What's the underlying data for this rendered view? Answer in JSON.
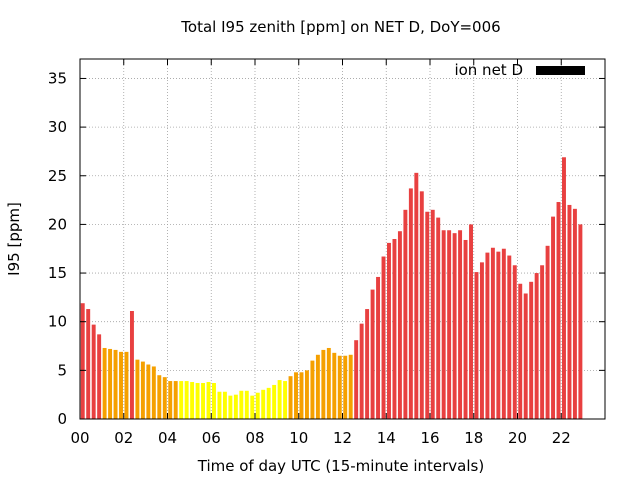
{
  "chart_data": {
    "type": "bar",
    "title": "Total I95 zenith [ppm] on NET D, DoY=006",
    "xlabel": "Time of day UTC (15-minute intervals)",
    "ylabel": "I95 [ppm]",
    "ylim": [
      0,
      37
    ],
    "xlim": [
      0,
      24
    ],
    "yticks": [
      0,
      5,
      10,
      15,
      20,
      25,
      30,
      35
    ],
    "xticks": [
      {
        "value": 0,
        "label": "00"
      },
      {
        "value": 2,
        "label": "02"
      },
      {
        "value": 4,
        "label": "04"
      },
      {
        "value": 6,
        "label": "06"
      },
      {
        "value": 8,
        "label": "08"
      },
      {
        "value": 10,
        "label": "10"
      },
      {
        "value": 12,
        "label": "12"
      },
      {
        "value": 14,
        "label": "14"
      },
      {
        "value": 16,
        "label": "16"
      },
      {
        "value": 18,
        "label": "18"
      },
      {
        "value": 20,
        "label": "20"
      },
      {
        "value": 22,
        "label": "22"
      }
    ],
    "grid": true,
    "legend": {
      "label": "ion net D",
      "placement": "top-right",
      "color": "#000000"
    },
    "bin_hours": 0.25,
    "colors": {
      "red": "#e84040",
      "orange": "#f5a000",
      "yellow": "#ffff00"
    },
    "bars": [
      {
        "t": 0.0,
        "v": 11.9,
        "c": "red"
      },
      {
        "t": 0.25,
        "v": 11.3,
        "c": "red"
      },
      {
        "t": 0.5,
        "v": 9.7,
        "c": "red"
      },
      {
        "t": 0.75,
        "v": 8.7,
        "c": "red"
      },
      {
        "t": 1.0,
        "v": 7.3,
        "c": "orange"
      },
      {
        "t": 1.25,
        "v": 7.2,
        "c": "orange"
      },
      {
        "t": 1.5,
        "v": 7.1,
        "c": "orange"
      },
      {
        "t": 1.75,
        "v": 6.9,
        "c": "orange"
      },
      {
        "t": 2.0,
        "v": 6.9,
        "c": "orange"
      },
      {
        "t": 2.25,
        "v": 11.1,
        "c": "red"
      },
      {
        "t": 2.5,
        "v": 6.1,
        "c": "orange"
      },
      {
        "t": 2.75,
        "v": 5.9,
        "c": "orange"
      },
      {
        "t": 3.0,
        "v": 5.6,
        "c": "orange"
      },
      {
        "t": 3.25,
        "v": 5.4,
        "c": "orange"
      },
      {
        "t": 3.5,
        "v": 4.5,
        "c": "orange"
      },
      {
        "t": 3.75,
        "v": 4.3,
        "c": "orange"
      },
      {
        "t": 4.0,
        "v": 3.9,
        "c": "orange"
      },
      {
        "t": 4.25,
        "v": 3.9,
        "c": "orange"
      },
      {
        "t": 4.5,
        "v": 3.9,
        "c": "yellow"
      },
      {
        "t": 4.75,
        "v": 3.9,
        "c": "yellow"
      },
      {
        "t": 5.0,
        "v": 3.8,
        "c": "yellow"
      },
      {
        "t": 5.25,
        "v": 3.7,
        "c": "yellow"
      },
      {
        "t": 5.5,
        "v": 3.7,
        "c": "yellow"
      },
      {
        "t": 5.75,
        "v": 3.8,
        "c": "yellow"
      },
      {
        "t": 6.0,
        "v": 3.7,
        "c": "yellow"
      },
      {
        "t": 6.25,
        "v": 2.8,
        "c": "yellow"
      },
      {
        "t": 6.5,
        "v": 2.8,
        "c": "yellow"
      },
      {
        "t": 6.75,
        "v": 2.4,
        "c": "yellow"
      },
      {
        "t": 7.0,
        "v": 2.5,
        "c": "yellow"
      },
      {
        "t": 7.25,
        "v": 2.9,
        "c": "yellow"
      },
      {
        "t": 7.5,
        "v": 2.9,
        "c": "yellow"
      },
      {
        "t": 7.75,
        "v": 2.4,
        "c": "yellow"
      },
      {
        "t": 8.0,
        "v": 2.7,
        "c": "yellow"
      },
      {
        "t": 8.25,
        "v": 3.0,
        "c": "yellow"
      },
      {
        "t": 8.5,
        "v": 3.2,
        "c": "yellow"
      },
      {
        "t": 8.75,
        "v": 3.5,
        "c": "yellow"
      },
      {
        "t": 9.0,
        "v": 4.0,
        "c": "yellow"
      },
      {
        "t": 9.25,
        "v": 3.9,
        "c": "yellow"
      },
      {
        "t": 9.5,
        "v": 4.4,
        "c": "orange"
      },
      {
        "t": 9.75,
        "v": 4.8,
        "c": "orange"
      },
      {
        "t": 10.0,
        "v": 4.8,
        "c": "orange"
      },
      {
        "t": 10.25,
        "v": 5.0,
        "c": "orange"
      },
      {
        "t": 10.5,
        "v": 6.0,
        "c": "orange"
      },
      {
        "t": 10.75,
        "v": 6.6,
        "c": "orange"
      },
      {
        "t": 11.0,
        "v": 7.1,
        "c": "orange"
      },
      {
        "t": 11.25,
        "v": 7.3,
        "c": "orange"
      },
      {
        "t": 11.5,
        "v": 6.8,
        "c": "orange"
      },
      {
        "t": 11.75,
        "v": 6.5,
        "c": "orange"
      },
      {
        "t": 12.0,
        "v": 6.5,
        "c": "orange"
      },
      {
        "t": 12.25,
        "v": 6.6,
        "c": "orange"
      },
      {
        "t": 12.5,
        "v": 8.1,
        "c": "red"
      },
      {
        "t": 12.75,
        "v": 9.8,
        "c": "red"
      },
      {
        "t": 13.0,
        "v": 11.3,
        "c": "red"
      },
      {
        "t": 13.25,
        "v": 13.3,
        "c": "red"
      },
      {
        "t": 13.5,
        "v": 14.6,
        "c": "red"
      },
      {
        "t": 13.75,
        "v": 16.7,
        "c": "red"
      },
      {
        "t": 14.0,
        "v": 18.1,
        "c": "red"
      },
      {
        "t": 14.25,
        "v": 18.5,
        "c": "red"
      },
      {
        "t": 14.5,
        "v": 19.3,
        "c": "red"
      },
      {
        "t": 14.75,
        "v": 21.5,
        "c": "red"
      },
      {
        "t": 15.0,
        "v": 23.7,
        "c": "red"
      },
      {
        "t": 15.25,
        "v": 25.3,
        "c": "red"
      },
      {
        "t": 15.5,
        "v": 23.4,
        "c": "red"
      },
      {
        "t": 15.75,
        "v": 21.3,
        "c": "red"
      },
      {
        "t": 16.0,
        "v": 21.5,
        "c": "red"
      },
      {
        "t": 16.25,
        "v": 20.7,
        "c": "red"
      },
      {
        "t": 16.5,
        "v": 19.4,
        "c": "red"
      },
      {
        "t": 16.75,
        "v": 19.4,
        "c": "red"
      },
      {
        "t": 17.0,
        "v": 19.1,
        "c": "red"
      },
      {
        "t": 17.25,
        "v": 19.4,
        "c": "red"
      },
      {
        "t": 17.5,
        "v": 18.4,
        "c": "red"
      },
      {
        "t": 17.75,
        "v": 20.0,
        "c": "red"
      },
      {
        "t": 18.0,
        "v": 15.1,
        "c": "red"
      },
      {
        "t": 18.25,
        "v": 16.1,
        "c": "red"
      },
      {
        "t": 18.5,
        "v": 17.1,
        "c": "red"
      },
      {
        "t": 18.75,
        "v": 17.6,
        "c": "red"
      },
      {
        "t": 19.0,
        "v": 17.2,
        "c": "red"
      },
      {
        "t": 19.25,
        "v": 17.5,
        "c": "red"
      },
      {
        "t": 19.5,
        "v": 16.8,
        "c": "red"
      },
      {
        "t": 19.75,
        "v": 15.8,
        "c": "red"
      },
      {
        "t": 20.0,
        "v": 13.9,
        "c": "red"
      },
      {
        "t": 20.25,
        "v": 12.9,
        "c": "red"
      },
      {
        "t": 20.5,
        "v": 14.1,
        "c": "red"
      },
      {
        "t": 20.75,
        "v": 15.0,
        "c": "red"
      },
      {
        "t": 21.0,
        "v": 15.8,
        "c": "red"
      },
      {
        "t": 21.25,
        "v": 17.8,
        "c": "red"
      },
      {
        "t": 21.5,
        "v": 20.8,
        "c": "red"
      },
      {
        "t": 21.75,
        "v": 22.3,
        "c": "red"
      },
      {
        "t": 22.0,
        "v": 26.9,
        "c": "red"
      },
      {
        "t": 22.25,
        "v": 22.0,
        "c": "red"
      },
      {
        "t": 22.5,
        "v": 21.6,
        "c": "red"
      },
      {
        "t": 22.75,
        "v": 20.0,
        "c": "red"
      }
    ]
  }
}
